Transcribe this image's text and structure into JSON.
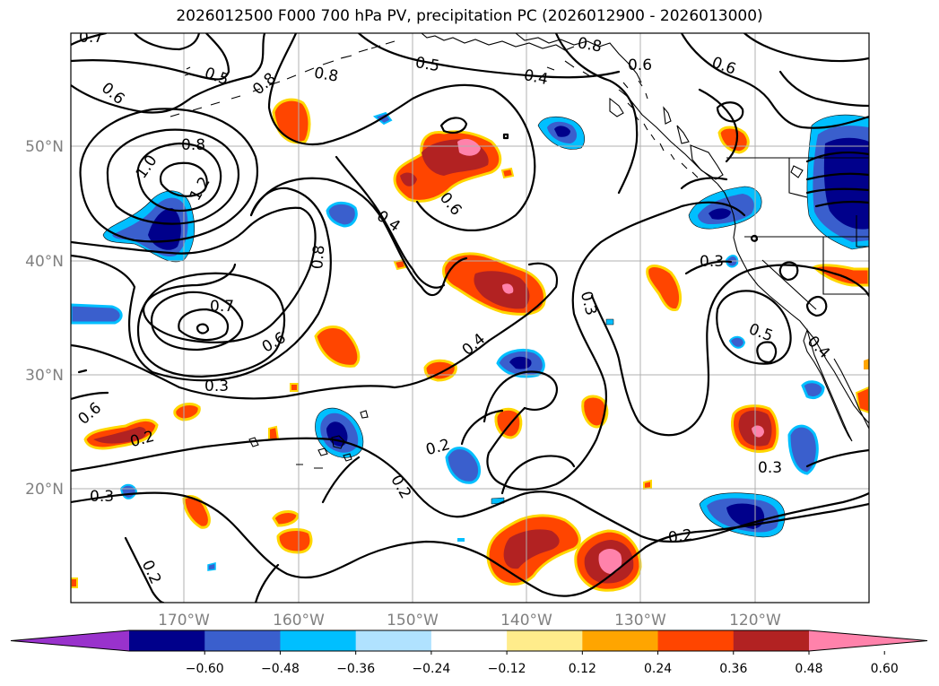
{
  "title": "2026012500 F000 700 hPa PV, precipitation PC (2026012900 - 2026013000)",
  "axes": {
    "lon_ticks": [
      "170°W",
      "160°W",
      "150°W",
      "140°W",
      "130°W",
      "120°W"
    ],
    "lat_ticks": [
      "50°N",
      "40°N",
      "30°N",
      "20°N"
    ]
  },
  "contour_labels": [
    "0.7",
    "0.5",
    "0.6",
    "0.8",
    "0.5",
    "0.4",
    "0.6",
    "0.8",
    "0.6",
    "1.0",
    "0.8",
    "1.2",
    "0.8",
    "0.4",
    "0.6",
    "0.8",
    "0.3",
    "0.7",
    "0.6",
    "0.4",
    "0.3",
    "0.3",
    "0.5",
    "0.4",
    "0.2",
    "0.2",
    "0.2",
    "0.3",
    "0.2",
    "0.3",
    "0.2",
    "0.6"
  ],
  "colorbar": {
    "ticks": [
      "−0.60",
      "−0.48",
      "−0.36",
      "−0.24",
      "−0.12",
      "0.12",
      "0.24",
      "0.36",
      "0.48",
      "0.60"
    ],
    "colors": [
      "#9932cc",
      "#00008b",
      "#3a5fcd",
      "#00bfff",
      "#b0e2ff",
      "#ffffff",
      "#ffec8b",
      "#ffa500",
      "#ff4500",
      "#b22222",
      "#ff82ab"
    ]
  },
  "colors": {
    "frame": "#000000",
    "gridline": "#b0b0b0",
    "tick_label": "#808080"
  }
}
